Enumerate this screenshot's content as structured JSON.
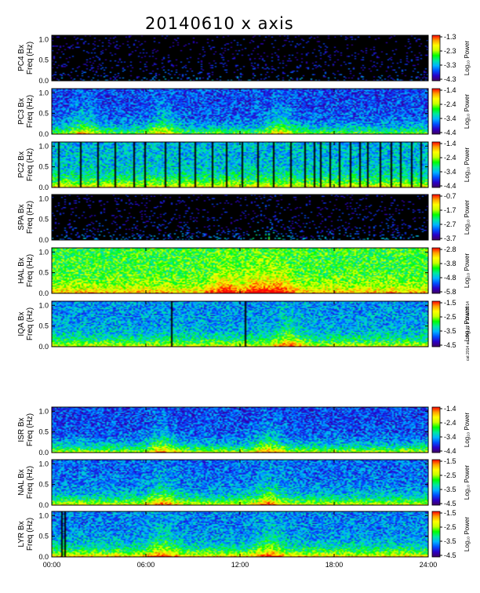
{
  "title": "20140610 x axis",
  "note": "cat 2014 ac 1844 22 3 10 10 2014",
  "colorbar_label": "Log₁₀ Power",
  "colors": {
    "scale": [
      "#400060",
      "#2a00c8",
      "#0050ff",
      "#00b4ff",
      "#00e8a0",
      "#00ff00",
      "#c8ff00",
      "#ffff00",
      "#ffa000",
      "#ff0000"
    ],
    "blank": "#000000",
    "axis": "#000000"
  },
  "chart_data": [
    {
      "type": "heatmap",
      "ylabel": "PC4 Bx\nFreq (Hz)",
      "station": "PC4",
      "yticks": [
        "0.0",
        "0.5",
        "1.0"
      ],
      "ylim": [
        0,
        1.1
      ],
      "colorbar_ticks": [
        "-1.3",
        "-2.3",
        "-3.3",
        "-4.3"
      ],
      "clim": [
        -4.3,
        -1.3
      ],
      "background_level": 0.05,
      "low_freq_level": 0.25,
      "event_hours": [],
      "gap_hours": [
        6.1,
        6.9,
        9.1,
        9.8,
        10.6,
        11.3,
        12.4,
        13.0,
        13.9,
        14.6,
        16.1,
        17.2,
        17.8,
        18.5,
        19.4,
        20.1,
        21.1,
        22.4
      ]
    },
    {
      "type": "heatmap",
      "ylabel": "PC3 Bx\nFreq (Hz)",
      "station": "PC3",
      "yticks": [
        "0.0",
        "0.5",
        "1.0"
      ],
      "ylim": [
        0,
        1.1
      ],
      "colorbar_ticks": [
        "-1.4",
        "-2.4",
        "-3.4",
        "-4.4"
      ],
      "clim": [
        -4.4,
        -1.4
      ],
      "background_level": 0.2,
      "low_freq_level": 0.45,
      "event_hours": [
        2.0,
        7.0,
        14.5
      ],
      "gap_hours": []
    },
    {
      "type": "heatmap",
      "ylabel": "PC2 Bx\nFreq (Hz)",
      "station": "PC2",
      "yticks": [
        "0.0",
        "0.5",
        "1.0"
      ],
      "ylim": [
        0,
        1.1
      ],
      "colorbar_ticks": [
        "-1.4",
        "-2.4",
        "-3.4",
        "-4.4"
      ],
      "clim": [
        -4.4,
        -1.4
      ],
      "background_level": 0.35,
      "low_freq_level": 0.5,
      "event_hours": [],
      "gap_hours": [
        0.4,
        1.8,
        2.9,
        4.0,
        5.2,
        5.9,
        7.2,
        8.1,
        9.1,
        10.2,
        11.1,
        12.1,
        13.1,
        14.1,
        15.2,
        16.1,
        16.7,
        17.1,
        17.7,
        18.3,
        19.0,
        19.6,
        20.1,
        20.9,
        21.6,
        22.2,
        22.9,
        23.5
      ]
    },
    {
      "type": "heatmap",
      "ylabel": "SPA Bx\nFreq (Hz)",
      "station": "SPA",
      "yticks": [
        "0.0",
        "0.5",
        "1.0"
      ],
      "ylim": [
        0,
        1.1
      ],
      "colorbar_ticks": [
        "-0.7",
        "-1.7",
        "-2.7",
        "-3.7"
      ],
      "clim": [
        -3.7,
        -0.7
      ],
      "background_level": 0.05,
      "low_freq_level": 0.3,
      "event_hours": [
        13.5
      ],
      "gap_hours": []
    },
    {
      "type": "heatmap",
      "ylabel": "HAL Bx\nFreq (Hz)",
      "station": "HAL",
      "yticks": [
        "0.0",
        "0.5",
        "1.0"
      ],
      "ylim": [
        0,
        1.1
      ],
      "colorbar_ticks": [
        "-2.8",
        "-3.8",
        "-4.8",
        "-5.8"
      ],
      "clim": [
        -5.8,
        -2.8
      ],
      "background_level": 0.55,
      "low_freq_level": 0.35,
      "event_hours": [
        11.0,
        13.0,
        14.5
      ],
      "gap_hours": []
    },
    {
      "type": "heatmap",
      "ylabel": "IQA Bx\nFreq (Hz)",
      "station": "IQA",
      "yticks": [
        "0.0",
        "0.5",
        "1.0"
      ],
      "ylim": [
        0,
        1.1
      ],
      "colorbar_ticks": [
        "-1.5",
        "-2.5",
        "-3.5",
        "-4.5"
      ],
      "clim": [
        -4.5,
        -1.5
      ],
      "background_level": 0.3,
      "low_freq_level": 0.5,
      "event_hours": [
        15.0
      ],
      "gap_hours": [
        7.6,
        12.3
      ]
    },
    {
      "type": "heatmap",
      "ylabel": "ISR Bx\nFreq (Hz)",
      "station": "ISR",
      "yticks": [
        "0.0",
        "0.5",
        "1.0"
      ],
      "ylim": [
        0,
        1.1
      ],
      "colorbar_ticks": [
        "-1.4",
        "-2.4",
        "-3.4",
        "-4.4"
      ],
      "clim": [
        -4.4,
        -1.4
      ],
      "background_level": 0.2,
      "low_freq_level": 0.55,
      "event_hours": [
        7.0,
        13.8
      ],
      "gap_hours": []
    },
    {
      "type": "heatmap",
      "ylabel": "NAL Bx\nFreq (Hz)",
      "station": "NAL",
      "yticks": [
        "0.0",
        "0.5",
        "1.0"
      ],
      "ylim": [
        0,
        1.1
      ],
      "colorbar_ticks": [
        "-1.5",
        "-2.5",
        "-3.5",
        "-4.5"
      ],
      "clim": [
        -4.5,
        -1.5
      ],
      "background_level": 0.25,
      "low_freq_level": 0.55,
      "event_hours": [
        7.0,
        13.8
      ],
      "gap_hours": []
    },
    {
      "type": "heatmap",
      "ylabel": "LYR Bx\nFreq (Hz)",
      "station": "LYR",
      "yticks": [
        "0.0",
        "0.5",
        "1.0"
      ],
      "ylim": [
        0,
        1.1
      ],
      "colorbar_ticks": [
        "-1.5",
        "-2.5",
        "-3.5",
        "-4.5"
      ],
      "clim": [
        -4.5,
        -1.5
      ],
      "background_level": 0.28,
      "low_freq_level": 0.6,
      "event_hours": [
        7.0,
        13.8
      ],
      "gap_hours": [
        0.6,
        0.8
      ]
    }
  ],
  "x_axis": {
    "xlim": [
      0,
      24
    ],
    "ticks": [
      "00:00",
      "06:00",
      "12:00",
      "18:00",
      "24:00"
    ],
    "tick_hours": [
      0,
      6,
      12,
      18,
      24
    ]
  }
}
